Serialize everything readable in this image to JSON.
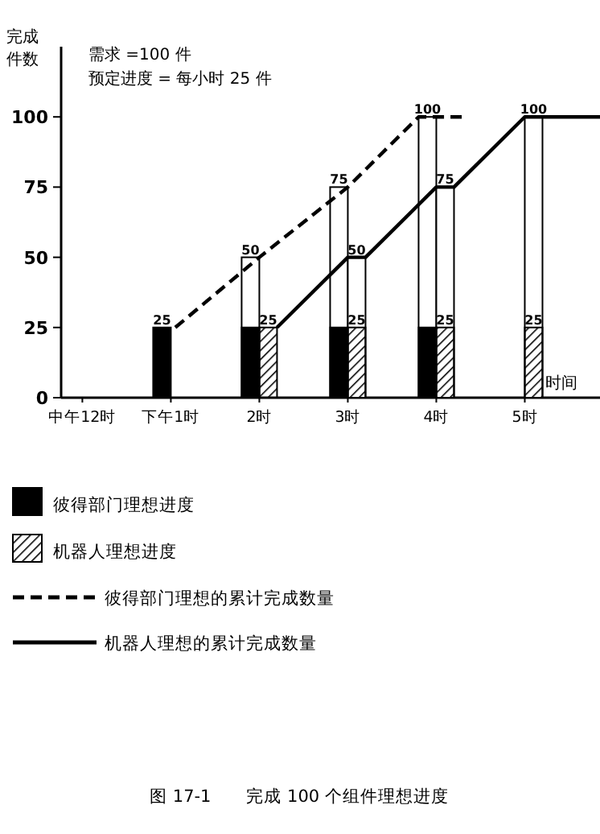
{
  "chart_data": {
    "type": "bar",
    "title": "图 17-1　　完成 100 个组件理想进度",
    "xlabel": "时间",
    "ylabel": "完成件数",
    "annotations": [
      "需求 =100 件",
      "预定进度 = 每小时 25 件"
    ],
    "xlim": [
      -0.24,
      5.85
    ],
    "xticks": [
      {
        "value": 0,
        "label": "中午12时"
      },
      {
        "value": 1,
        "label": "下午1时"
      },
      {
        "value": 2,
        "label": "2时"
      },
      {
        "value": 3,
        "label": "3时"
      },
      {
        "value": 4,
        "label": "4时"
      },
      {
        "value": 5,
        "label": "5时"
      }
    ],
    "ylim": [
      0,
      125
    ],
    "yticks": [
      0,
      25,
      50,
      75,
      100
    ],
    "grid": false,
    "legend": "bottom",
    "series": [
      {
        "color": "#ffffff",
        "x": [
          1.9,
          2.9,
          3.9
        ],
        "values": [
          50,
          75,
          100
        ],
        "value_labels": [
          "50",
          "75",
          "100"
        ]
      },
      {
        "color": "#ffffff",
        "x": [
          3.1,
          4.1,
          5.1
        ],
        "values": [
          50,
          75,
          100
        ],
        "value_labels": [
          "50",
          "75",
          "100"
        ]
      },
      {
        "name": "彼得部门理想进度",
        "color": "#000000",
        "x": [
          0.9,
          1.9,
          2.9,
          3.9
        ],
        "values": [
          25,
          25,
          25,
          25
        ],
        "value_labels": [
          "25",
          null,
          null,
          null
        ]
      },
      {
        "name": "机器人理想进度",
        "color": "#000000",
        "x": [
          2.1,
          3.1,
          4.1,
          5.1
        ],
        "values": [
          25,
          25,
          25,
          25
        ],
        "value_labels": [
          "25",
          "25",
          "25",
          "25"
        ]
      },
      {
        "name": "彼得部门理想的累计完成数量",
        "type": "line",
        "line_style": "dashed",
        "color": "#000000",
        "x": [
          1.05,
          2.0,
          3.0,
          3.8,
          4.3
        ],
        "values": [
          25,
          50,
          75,
          100,
          100
        ]
      },
      {
        "name": "机器人理想的累计完成数量",
        "type": "line",
        "line_style": "solid",
        "color": "#000000",
        "x": [
          2.2,
          3.0,
          3.2,
          4.0,
          4.2,
          5.0,
          5.85
        ],
        "values": [
          25,
          50,
          50,
          75,
          75,
          100,
          100
        ]
      }
    ]
  }
}
